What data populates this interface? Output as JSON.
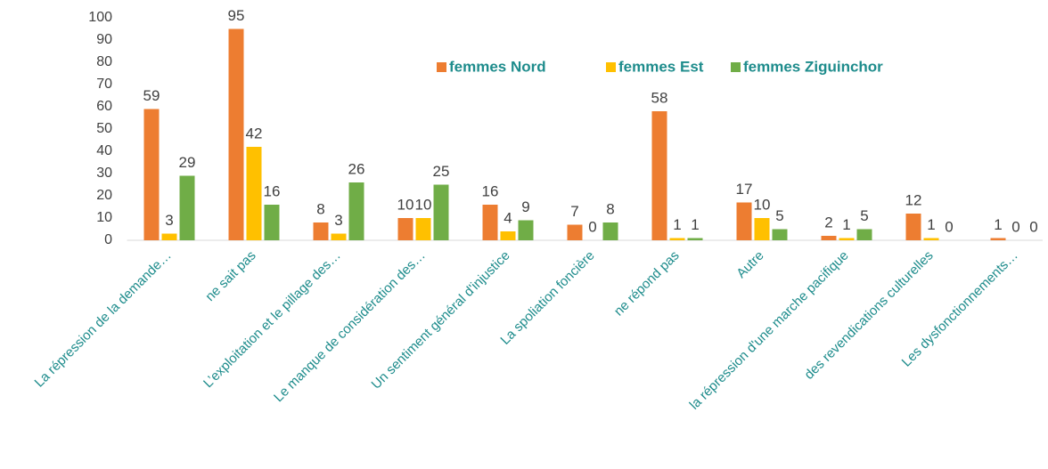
{
  "chart_data": {
    "type": "bar",
    "categories": [
      "La répression de la demande…",
      "ne sait pas",
      "L’exploitation et le pillage des…",
      "Le manque de considération des…",
      "Un sentiment général d'injustice",
      "La spoliation foncière",
      "ne répond pas",
      "Autre",
      "la répression d'une marche pacifique",
      "des revendications culturelles",
      "Les dysfonctionnements…"
    ],
    "series": [
      {
        "name": "femmes Nord",
        "color": "#ED7D31",
        "values": [
          59,
          95,
          8,
          10,
          16,
          7,
          58,
          17,
          2,
          12,
          1
        ]
      },
      {
        "name": "femmes Est",
        "color": "#FFC000",
        "values": [
          3,
          42,
          3,
          10,
          4,
          0,
          1,
          10,
          1,
          1,
          0
        ]
      },
      {
        "name": "femmes Ziguinchor",
        "color": "#70AD47",
        "values": [
          29,
          16,
          26,
          25,
          9,
          8,
          1,
          5,
          5,
          0,
          0
        ]
      }
    ],
    "ylim": [
      0,
      100
    ],
    "yticks": [
      0,
      10,
      20,
      30,
      40,
      50,
      60,
      70,
      80,
      90,
      100
    ],
    "grid": false,
    "legend": "top"
  }
}
